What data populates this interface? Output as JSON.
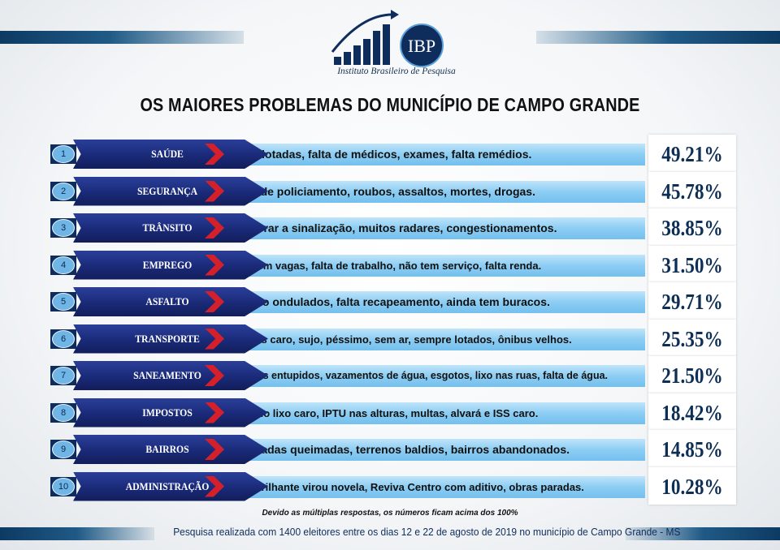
{
  "logo": {
    "abbrev": "IBP",
    "name": "Instituto Brasileiro de Pesquisa"
  },
  "title": "OS MAIORES PROBLEMAS DO MUNICÍPIO DE CAMPO GRANDE",
  "chart_data": {
    "type": "table",
    "title": "OS MAIORES PROBLEMAS DO MUNICÍPIO DE CAMPO GRANDE",
    "columns": [
      "",
      "",
      "",
      ""
    ],
    "rows": [
      {
        "rank": "1",
        "category": "SAÚDE",
        "description": "Upas lotadas, falta de médicos, exames, falta remédios.",
        "value": 49.21,
        "label": "49.21%"
      },
      {
        "rank": "2",
        "category": "SEGURANÇA",
        "description": "Falta de policiamento, roubos, assaltos, mortes, drogas.",
        "value": 45.78,
        "label": "45.78%"
      },
      {
        "rank": "3",
        "category": "TRÂNSITO",
        "description": "Melhorar a sinalização, muitos radares, congestionamentos.",
        "value": 38.85,
        "label": "38.85%"
      },
      {
        "rank": "4",
        "category": "EMPREGO",
        "description": "Não tem vagas, falta de trabalho, não tem serviço, falta renda.",
        "value": 31.5,
        "label": "31.50%"
      },
      {
        "rank": "5",
        "category": "ASFALTO",
        "description": "Asfalto ondulados, falta recapeamento, ainda tem buracos.",
        "value": 29.71,
        "label": "29.71%"
      },
      {
        "rank": "6",
        "category": "TRANSPORTE",
        "description": "Ônibus caro, sujo, péssimo, sem ar, sempre lotados, ônibus velhos.",
        "value": 25.35,
        "label": "25.35%"
      },
      {
        "rank": "7",
        "category": "SANEAMENTO",
        "description": "Bueiros entupidos, vazamentos de água, esgotos, lixo nas ruas, falta de água.",
        "value": 21.5,
        "label": "21.50%"
      },
      {
        "rank": "8",
        "category": "IMPOSTOS",
        "description": "Taxa do lixo caro, IPTU nas alturas, multas, alvará e ISS caro.",
        "value": 18.42,
        "label": "18.42%"
      },
      {
        "rank": "9",
        "category": "BAIRROS",
        "description": "Lâmpadas queimadas, terrenos baldios, bairros abandonados.",
        "value": 14.85,
        "label": "14.85%"
      },
      {
        "rank": "10",
        "category": "ADMINISTRAÇÃO",
        "description": "Rua Brilhante virou novela, Reviva Centro com aditivo, obras paradas.",
        "value": 10.28,
        "label": "10.28%"
      }
    ]
  },
  "footnote": "Devido as múltiplas respostas, os números ficam acima dos 100%",
  "footer": "Pesquisa realizada com 1400 eleitores entre os dias 12 e 22 de agosto de 2019 no município de Campo Grande - MS",
  "colors": {
    "navy": "#0f2d5c",
    "category_fill": "#1a2a78",
    "accent_red": "#d4202a",
    "description_bar": "#8ccdf3",
    "percent_text": "#0d2f55"
  }
}
